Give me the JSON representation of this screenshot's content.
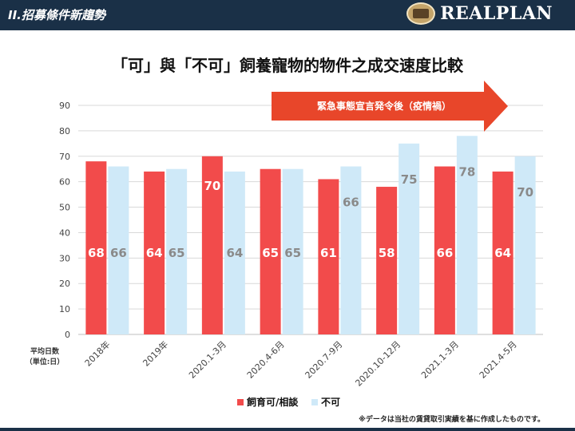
{
  "header": {
    "title": "II.招募條件新趨勢",
    "logo_text": "REALPLAN"
  },
  "note": "※データは当社の賃貸取引実績を基に作成したものです。",
  "colors": {
    "series1": "#f24b4b",
    "series2": "#cfe9f8",
    "header_bg": "#1a3047",
    "arrow": "#e8462a"
  },
  "chart_data": {
    "type": "bar",
    "title": "「可」與「不可」飼養寵物的物件之成交速度比較",
    "ylabel": "平均日数（単位:日）",
    "ylim": [
      0,
      90
    ],
    "yticks": [
      0,
      10,
      20,
      30,
      40,
      50,
      60,
      70,
      80,
      90
    ],
    "grid": true,
    "legend_position": "bottom",
    "categories": [
      "2018年",
      "2019年",
      "2020.1-3月",
      "2020.4-6月",
      "2020.7-9月",
      "2020.10-12月",
      "2021.1-3月",
      "2021.4-5月"
    ],
    "series": [
      {
        "name": "飼育可/相談",
        "values": [
          68,
          64,
          70,
          65,
          61,
          58,
          66,
          64
        ]
      },
      {
        "name": "不可",
        "values": [
          66,
          65,
          64,
          65,
          66,
          75,
          78,
          70
        ]
      }
    ],
    "annotation": "緊急事態宣言発令後（疫情禍）"
  }
}
